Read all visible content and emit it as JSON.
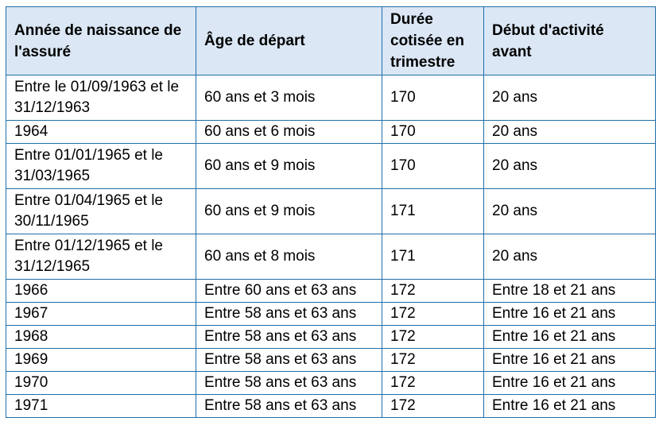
{
  "table": {
    "headers": [
      "Année de naissance de l'assuré",
      "Âge de départ",
      "Durée cotisée en trimestre",
      "Début d'activité avant"
    ],
    "rows": [
      [
        "Entre le 01/09/1963 et le 31/12/1963",
        "60 ans et 3 mois",
        "170",
        "20 ans"
      ],
      [
        "1964",
        "60 ans et 6 mois",
        "170",
        "20 ans"
      ],
      [
        "Entre 01/01/1965 et le 31/03/1965",
        "60 ans et 9 mois",
        "170",
        "20 ans"
      ],
      [
        "Entre 01/04/1965 et le 30/11/1965",
        "60 ans et 9 mois",
        "171",
        "20 ans"
      ],
      [
        "Entre 01/12/1965 et le 31/12/1965",
        "60 ans et 8 mois",
        "171",
        "20 ans"
      ],
      [
        "1966",
        "Entre 60 ans et 63 ans",
        "172",
        "Entre 18 et 21 ans"
      ],
      [
        "1967",
        "Entre 58 ans et 63 ans",
        "172",
        "Entre 16 et 21 ans"
      ],
      [
        "1968",
        "Entre 58 ans et 63 ans",
        "172",
        "Entre 16 et 21 ans"
      ],
      [
        "1969",
        "Entre 58 ans et 63 ans",
        "172",
        "Entre 16 et 21 ans"
      ],
      [
        "1970",
        "Entre 58 ans et 63 ans",
        "172",
        "Entre 16 et 21 ans"
      ],
      [
        "1971",
        "Entre 58 ans et 63 ans",
        "172",
        "Entre 16 et 21 ans"
      ]
    ]
  },
  "colors": {
    "header_bg": "#dbe7f5",
    "border": "#1f6fa8"
  }
}
